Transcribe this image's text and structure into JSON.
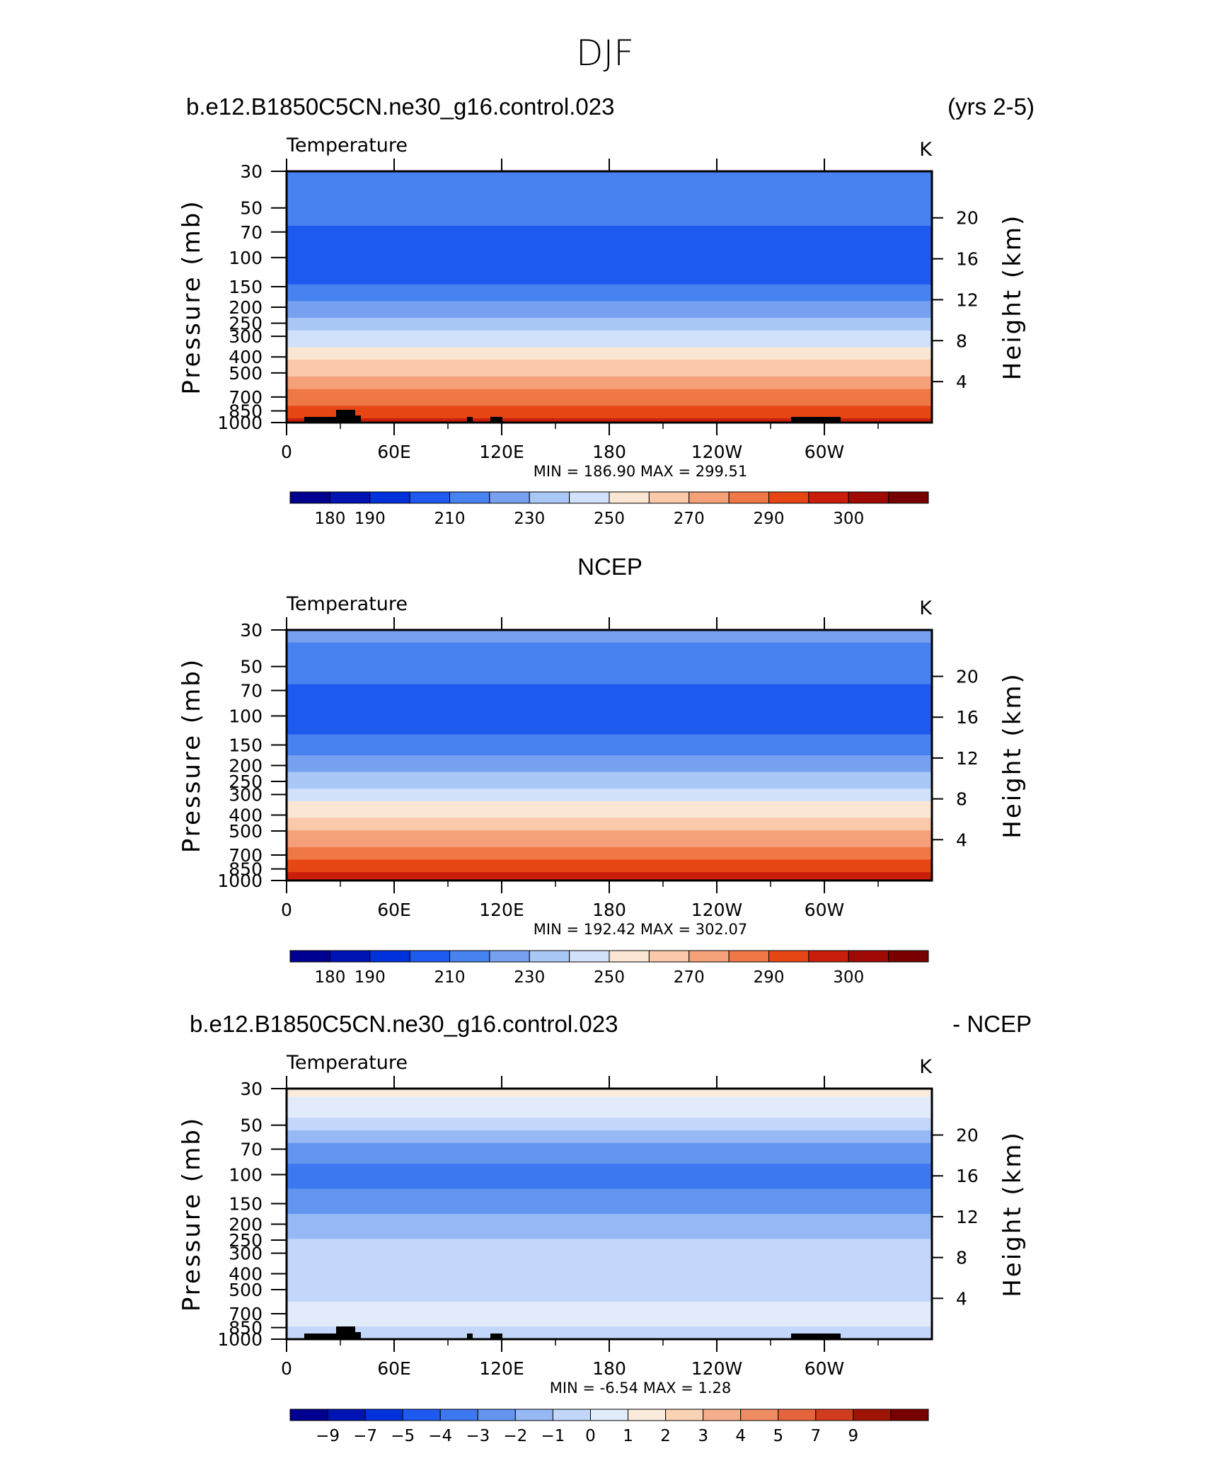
{
  "figure": {
    "title": "DJF",
    "run_label": "b.e12.B1850C5CN.ne30_g16.control.023",
    "years_label": "(yrs 2-5)",
    "obs_label": "NCEP",
    "diff_run_label": "b.e12.B1850C5CN.ne30_g16.control.023",
    "diff_suffix": "- NCEP"
  },
  "chart_data": [
    {
      "type": "contour",
      "panel": "model",
      "field_label": "Temperature",
      "units": "K",
      "ylabel": "Pressure (mb)",
      "ylabel_right": "Height (km)",
      "x_ticks": [
        "0",
        "60E",
        "120E",
        "180",
        "120W",
        "60W"
      ],
      "y_ticks": [
        "30",
        "50",
        "70",
        "100",
        "150",
        "200",
        "250",
        "300",
        "400",
        "500",
        "700",
        "850",
        "1000"
      ],
      "y_ticks_right": [
        "20",
        "16",
        "12",
        "8",
        "4"
      ],
      "min": 186.9,
      "max": 299.51,
      "stats": "MIN = 186.90 MAX = 299.51",
      "colorbar_levels": [
        180,
        185,
        190,
        200,
        210,
        220,
        230,
        240,
        250,
        260,
        270,
        280,
        290,
        295,
        300
      ],
      "colorbar_labels": [
        "180",
        "190",
        "210",
        "230",
        "250",
        "270",
        "290",
        "300"
      ],
      "bands_by_pressure": [
        {
          "pressure": 30,
          "value": 208
        },
        {
          "pressure": 50,
          "value": 204
        },
        {
          "pressure": 70,
          "value": 198
        },
        {
          "pressure": 100,
          "value": 193
        },
        {
          "pressure": 150,
          "value": 201
        },
        {
          "pressure": 200,
          "value": 214
        },
        {
          "pressure": 250,
          "value": 224
        },
        {
          "pressure": 300,
          "value": 233
        },
        {
          "pressure": 400,
          "value": 247
        },
        {
          "pressure": 500,
          "value": 258
        },
        {
          "pressure": 700,
          "value": 274
        },
        {
          "pressure": 850,
          "value": 285
        },
        {
          "pressure": 1000,
          "value": 293
        }
      ]
    },
    {
      "type": "contour",
      "panel": "obs",
      "field_label": "Temperature",
      "units": "K",
      "ylabel": "Pressure (mb)",
      "ylabel_right": "Height (km)",
      "x_ticks": [
        "0",
        "60E",
        "120E",
        "180",
        "120W",
        "60W"
      ],
      "y_ticks": [
        "30",
        "50",
        "70",
        "100",
        "150",
        "200",
        "250",
        "300",
        "400",
        "500",
        "700",
        "850",
        "1000"
      ],
      "y_ticks_right": [
        "20",
        "16",
        "12",
        "8",
        "4"
      ],
      "min": 192.42,
      "max": 302.07,
      "stats": "MIN = 192.42 MAX = 302.07",
      "colorbar_levels": [
        180,
        185,
        190,
        200,
        210,
        220,
        230,
        240,
        250,
        260,
        270,
        280,
        290,
        295,
        300
      ],
      "colorbar_labels": [
        "180",
        "190",
        "210",
        "230",
        "250",
        "270",
        "290",
        "300"
      ],
      "bands_by_pressure": [
        {
          "pressure": 30,
          "value": 213
        },
        {
          "pressure": 50,
          "value": 205
        },
        {
          "pressure": 70,
          "value": 198
        },
        {
          "pressure": 100,
          "value": 196
        },
        {
          "pressure": 150,
          "value": 203
        },
        {
          "pressure": 200,
          "value": 215
        },
        {
          "pressure": 250,
          "value": 225
        },
        {
          "pressure": 300,
          "value": 236
        },
        {
          "pressure": 400,
          "value": 249
        },
        {
          "pressure": 500,
          "value": 259
        },
        {
          "pressure": 700,
          "value": 275
        },
        {
          "pressure": 850,
          "value": 286
        },
        {
          "pressure": 1000,
          "value": 296
        }
      ]
    },
    {
      "type": "contour",
      "panel": "difference",
      "field_label": "Temperature",
      "units": "K",
      "ylabel": "Pressure (mb)",
      "ylabel_right": "Height (km)",
      "x_ticks": [
        "0",
        "60E",
        "120E",
        "180",
        "120W",
        "60W"
      ],
      "y_ticks": [
        "30",
        "50",
        "70",
        "100",
        "150",
        "200",
        "250",
        "300",
        "400",
        "500",
        "700",
        "850",
        "1000"
      ],
      "y_ticks_right": [
        "20",
        "16",
        "12",
        "8",
        "4"
      ],
      "min": -6.54,
      "max": 1.28,
      "stats": "MIN = -6.54 MAX = 1.28",
      "colorbar_levels": [
        -10,
        -9,
        -7,
        -5,
        -4,
        -3,
        -2,
        -1,
        0,
        1,
        2,
        3,
        4,
        5,
        7,
        9
      ],
      "colorbar_labels": [
        "−9",
        "−7",
        "−5",
        "−4",
        "−3",
        "−2",
        "−1",
        "0",
        "1",
        "2",
        "3",
        "4",
        "5",
        "7",
        "9"
      ],
      "bands_by_pressure": [
        {
          "pressure": 30,
          "value": 0.3
        },
        {
          "pressure": 40,
          "value": -0.5
        },
        {
          "pressure": 50,
          "value": -1.5
        },
        {
          "pressure": 70,
          "value": -3.5
        },
        {
          "pressure": 100,
          "value": -4.5
        },
        {
          "pressure": 150,
          "value": -3.5
        },
        {
          "pressure": 200,
          "value": -2.5
        },
        {
          "pressure": 300,
          "value": -1.5
        },
        {
          "pressure": 500,
          "value": -1.5
        },
        {
          "pressure": 700,
          "value": -0.5
        },
        {
          "pressure": 1000,
          "value": -1.5
        }
      ]
    }
  ],
  "colors": {
    "temperature_scale": [
      "#000090",
      "#0014b4",
      "#0032dc",
      "#1e5af0",
      "#4682f0",
      "#78a0f0",
      "#aac8f5",
      "#d2e1fa",
      "#fae6d2",
      "#fac8aa",
      "#f5a078",
      "#f07846",
      "#e64614",
      "#c81e0a",
      "#a00a05",
      "#780000"
    ],
    "difference_scale": [
      "#000090",
      "#0014b4",
      "#0032dc",
      "#1e5af0",
      "#3c78f0",
      "#6496f0",
      "#96b9f5",
      "#c3d7fa",
      "#e1ebfa",
      "#faebdc",
      "#fad2b4",
      "#f5af8c",
      "#f08c64",
      "#e6643c",
      "#d23c1e",
      "#a01405",
      "#780000"
    ],
    "terrain": "#000000"
  }
}
